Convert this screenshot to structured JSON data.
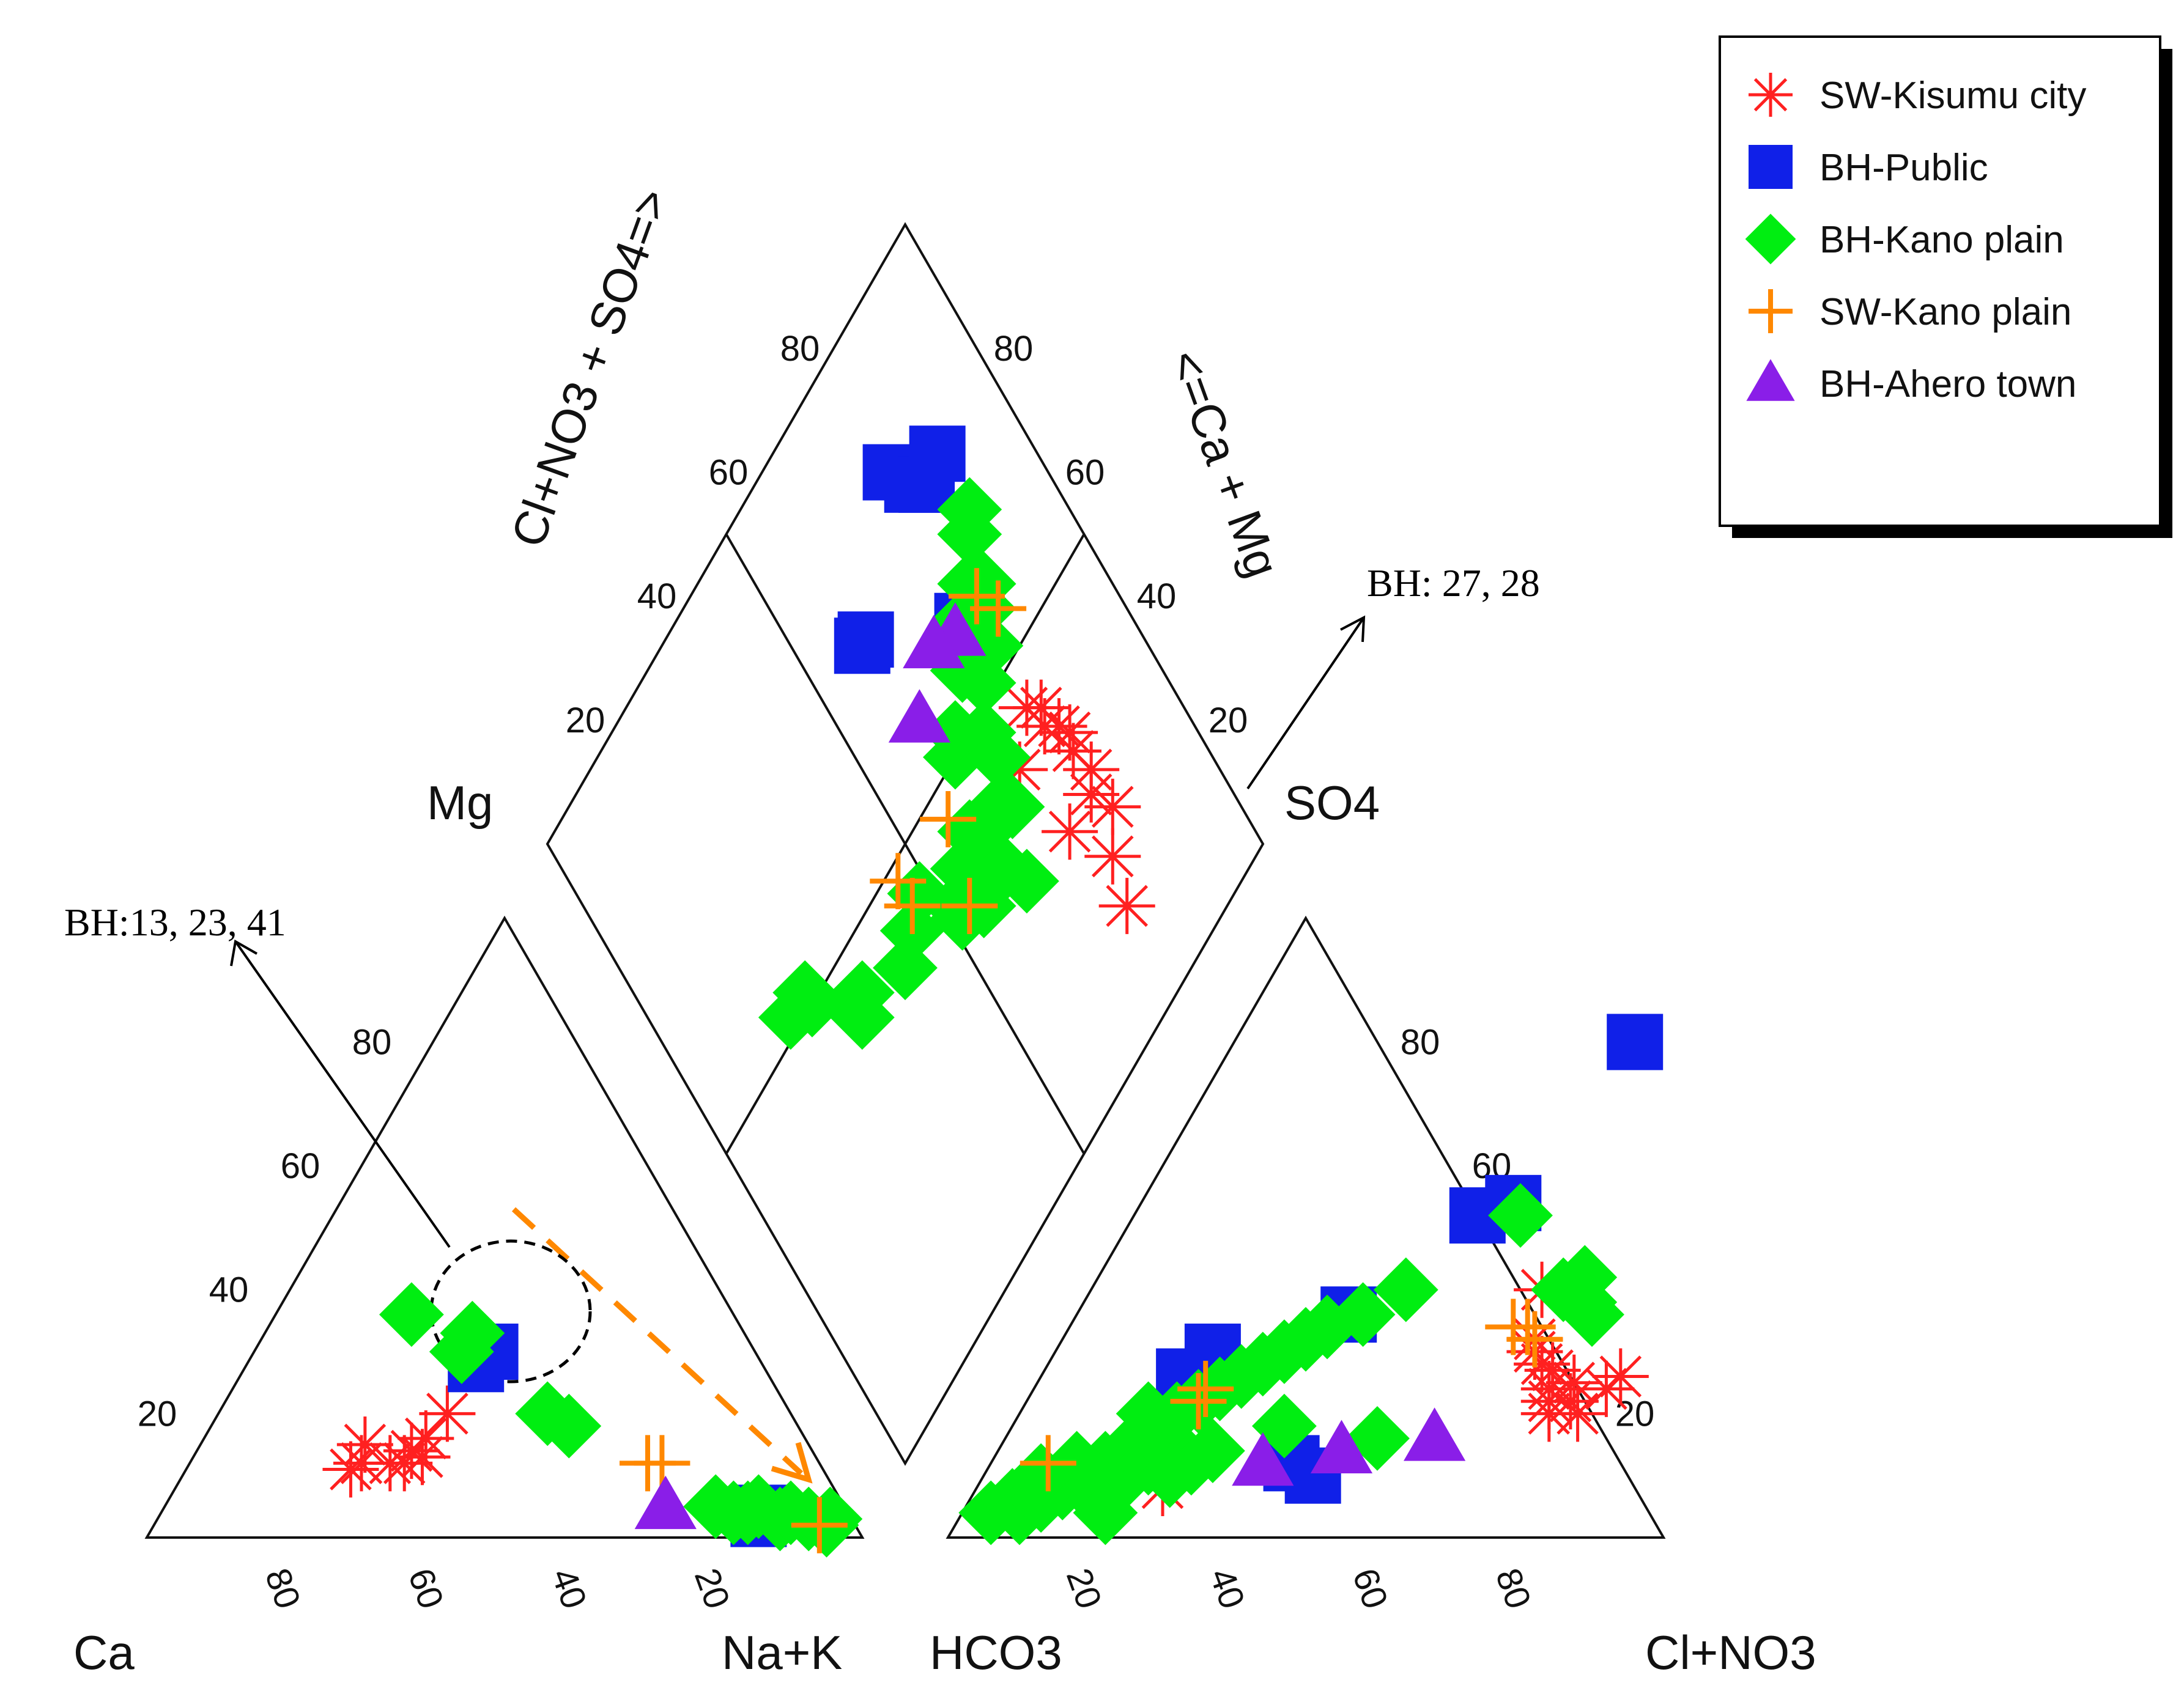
{
  "chart_data": {
    "type": "scatter",
    "diagram": "piper",
    "axis_labels": {
      "cation_left": "Ca",
      "cation_right": "Na+K",
      "cation_top": "Mg",
      "anion_left": "HCO3",
      "anion_right": "Cl+NO3",
      "anion_top": "SO4",
      "diamond_left": "Cl+NO3 + SO4=>",
      "diamond_right": "<=Ca + Mg"
    },
    "ticks": [
      "20",
      "40",
      "60",
      "80"
    ],
    "ticks_reversed": [
      "80",
      "60",
      "40",
      "20"
    ],
    "annotations": {
      "cation_group": "BH:13, 23, 41",
      "anion_group": "BH: 27, 28"
    },
    "series": [
      {
        "name": "SW-Kisumu city",
        "marker": "asterisk",
        "color": "#ff2020",
        "cation_points": [
          [
            48,
            20
          ],
          [
            53,
            16
          ],
          [
            55,
            13
          ],
          [
            56,
            14
          ],
          [
            58,
            12
          ],
          [
            60,
            12
          ],
          [
            62,
            15
          ],
          [
            64,
            12
          ],
          [
            66,
            11
          ]
        ],
        "anion_points": [
          [
            26,
            8
          ],
          [
            63,
            40
          ],
          [
            66,
            32
          ],
          [
            67,
            30
          ],
          [
            69,
            28
          ],
          [
            71,
            27
          ],
          [
            72,
            24
          ],
          [
            73,
            22
          ],
          [
            74,
            20
          ],
          [
            75,
            25
          ],
          [
            76,
            22
          ],
          [
            78,
            20
          ],
          [
            80,
            24
          ],
          [
            81,
            26
          ]
        ],
        "diamond_points": [
          [
            72,
            40
          ],
          [
            78,
            44
          ],
          [
            79,
            40
          ],
          [
            80,
            42
          ],
          [
            81,
            38
          ],
          [
            82,
            36
          ],
          [
            81,
            34
          ],
          [
            82,
            30
          ],
          [
            82,
            24
          ],
          [
            80,
            28
          ],
          [
            78,
            20
          ],
          [
            74,
            28
          ],
          [
            76,
            14
          ]
        ]
      },
      {
        "name": "BH-Public",
        "marker": "square",
        "color": "#1020e8",
        "cation_points": [
          [
            40,
            28
          ],
          [
            37,
            30
          ],
          [
            13,
            3
          ],
          [
            12,
            4
          ]
        ],
        "anion_points": [
          [
            42,
            12
          ],
          [
            46,
            10
          ],
          [
            22,
            30
          ],
          [
            20,
            26
          ],
          [
            38,
            36
          ],
          [
            48,
            52
          ],
          [
            52,
            54
          ],
          [
            56,
            80
          ]
        ],
        "diamond_points": [
          [
            60,
            72
          ],
          [
            61,
            72
          ],
          [
            78,
            82
          ],
          [
            80,
            78
          ],
          [
            82,
            76
          ],
          [
            86,
            77
          ],
          [
            76,
            60
          ]
        ]
      },
      {
        "name": "BH-Kano plain",
        "marker": "diamond",
        "color": "#00ee11",
        "cation_points": [
          [
            45,
            36
          ],
          [
            41,
            30
          ],
          [
            38,
            33
          ],
          [
            32,
            18
          ],
          [
            34,
            20
          ],
          [
            14,
            4
          ],
          [
            12,
            5
          ],
          [
            10,
            3
          ],
          [
            8,
            4
          ],
          [
            6,
            3
          ],
          [
            4,
            2
          ],
          [
            3,
            3
          ],
          [
            18,
            5
          ],
          [
            16,
            4
          ]
        ],
        "anion_points": [
          [
            4,
            4
          ],
          [
            6,
            6
          ],
          [
            8,
            4
          ],
          [
            10,
            6
          ],
          [
            12,
            8
          ],
          [
            14,
            10
          ],
          [
            16,
            12
          ],
          [
            18,
            14
          ],
          [
            20,
            16
          ],
          [
            22,
            20
          ],
          [
            24,
            22
          ],
          [
            26,
            24
          ],
          [
            28,
            26
          ],
          [
            30,
            28
          ],
          [
            32,
            30
          ],
          [
            34,
            32
          ],
          [
            36,
            34
          ],
          [
            40,
            36
          ],
          [
            44,
            40
          ],
          [
            16,
            8
          ],
          [
            18,
            6
          ],
          [
            20,
            10
          ],
          [
            22,
            12
          ],
          [
            24,
            14
          ],
          [
            26,
            10
          ],
          [
            28,
            12
          ],
          [
            30,
            14
          ],
          [
            38,
            18
          ],
          [
            52,
            16
          ],
          [
            66,
            40
          ],
          [
            68,
            42
          ],
          [
            70,
            38
          ],
          [
            72,
            36
          ],
          [
            54,
            52
          ],
          [
            18,
            20
          ],
          [
            12,
            12
          ],
          [
            20,
            4
          ],
          [
            8,
            10
          ]
        ],
        "diamond_points": [
          [
            20,
            52
          ],
          [
            24,
            52
          ],
          [
            24,
            50
          ],
          [
            32,
            44
          ],
          [
            30,
            42
          ],
          [
            40,
            40
          ],
          [
            44,
            42
          ],
          [
            48,
            44
          ],
          [
            52,
            38
          ],
          [
            56,
            34
          ],
          [
            58,
            36
          ],
          [
            60,
            38
          ],
          [
            62,
            40
          ],
          [
            64,
            50
          ],
          [
            66,
            52
          ],
          [
            70,
            48
          ],
          [
            72,
            56
          ],
          [
            76,
            60
          ],
          [
            80,
            62
          ],
          [
            84,
            66
          ],
          [
            86,
            68
          ],
          [
            82,
            60
          ],
          [
            80,
            58
          ],
          [
            78,
            54
          ],
          [
            74,
            52
          ],
          [
            70,
            44
          ],
          [
            68,
            38
          ],
          [
            64,
            30
          ],
          [
            62,
            34
          ],
          [
            66,
            40
          ],
          [
            60,
            42
          ],
          [
            56,
            40
          ],
          [
            52,
            36
          ],
          [
            54,
            36
          ]
        ]
      },
      {
        "name": "SW-Kano plain",
        "marker": "plus",
        "color": "#ff8800",
        "cation_points": [
          [
            24,
            12
          ],
          [
            22,
            12
          ],
          [
            5,
            2
          ]
        ],
        "anion_points": [
          [
            8,
            12
          ],
          [
            24,
            24
          ],
          [
            24,
            22
          ],
          [
            62,
            34
          ],
          [
            64,
            34
          ],
          [
            66,
            32
          ]
        ],
        "diamond_points": [
          [
            46,
            44
          ],
          [
            46,
            48
          ],
          [
            54,
            36
          ],
          [
            58,
            46
          ],
          [
            80,
            60
          ],
          [
            82,
            56
          ]
        ]
      },
      {
        "name": "BH-Ahero town",
        "marker": "triangle",
        "color": "#8a1ee8",
        "cation_points": [
          [
            25,
            5
          ]
        ],
        "anion_points": [
          [
            38,
            12
          ],
          [
            48,
            14
          ],
          [
            60,
            16
          ]
        ],
        "diamond_points": [
          [
            74,
            60
          ],
          [
            62,
            58
          ],
          [
            70,
            62
          ]
        ]
      }
    ]
  }
}
